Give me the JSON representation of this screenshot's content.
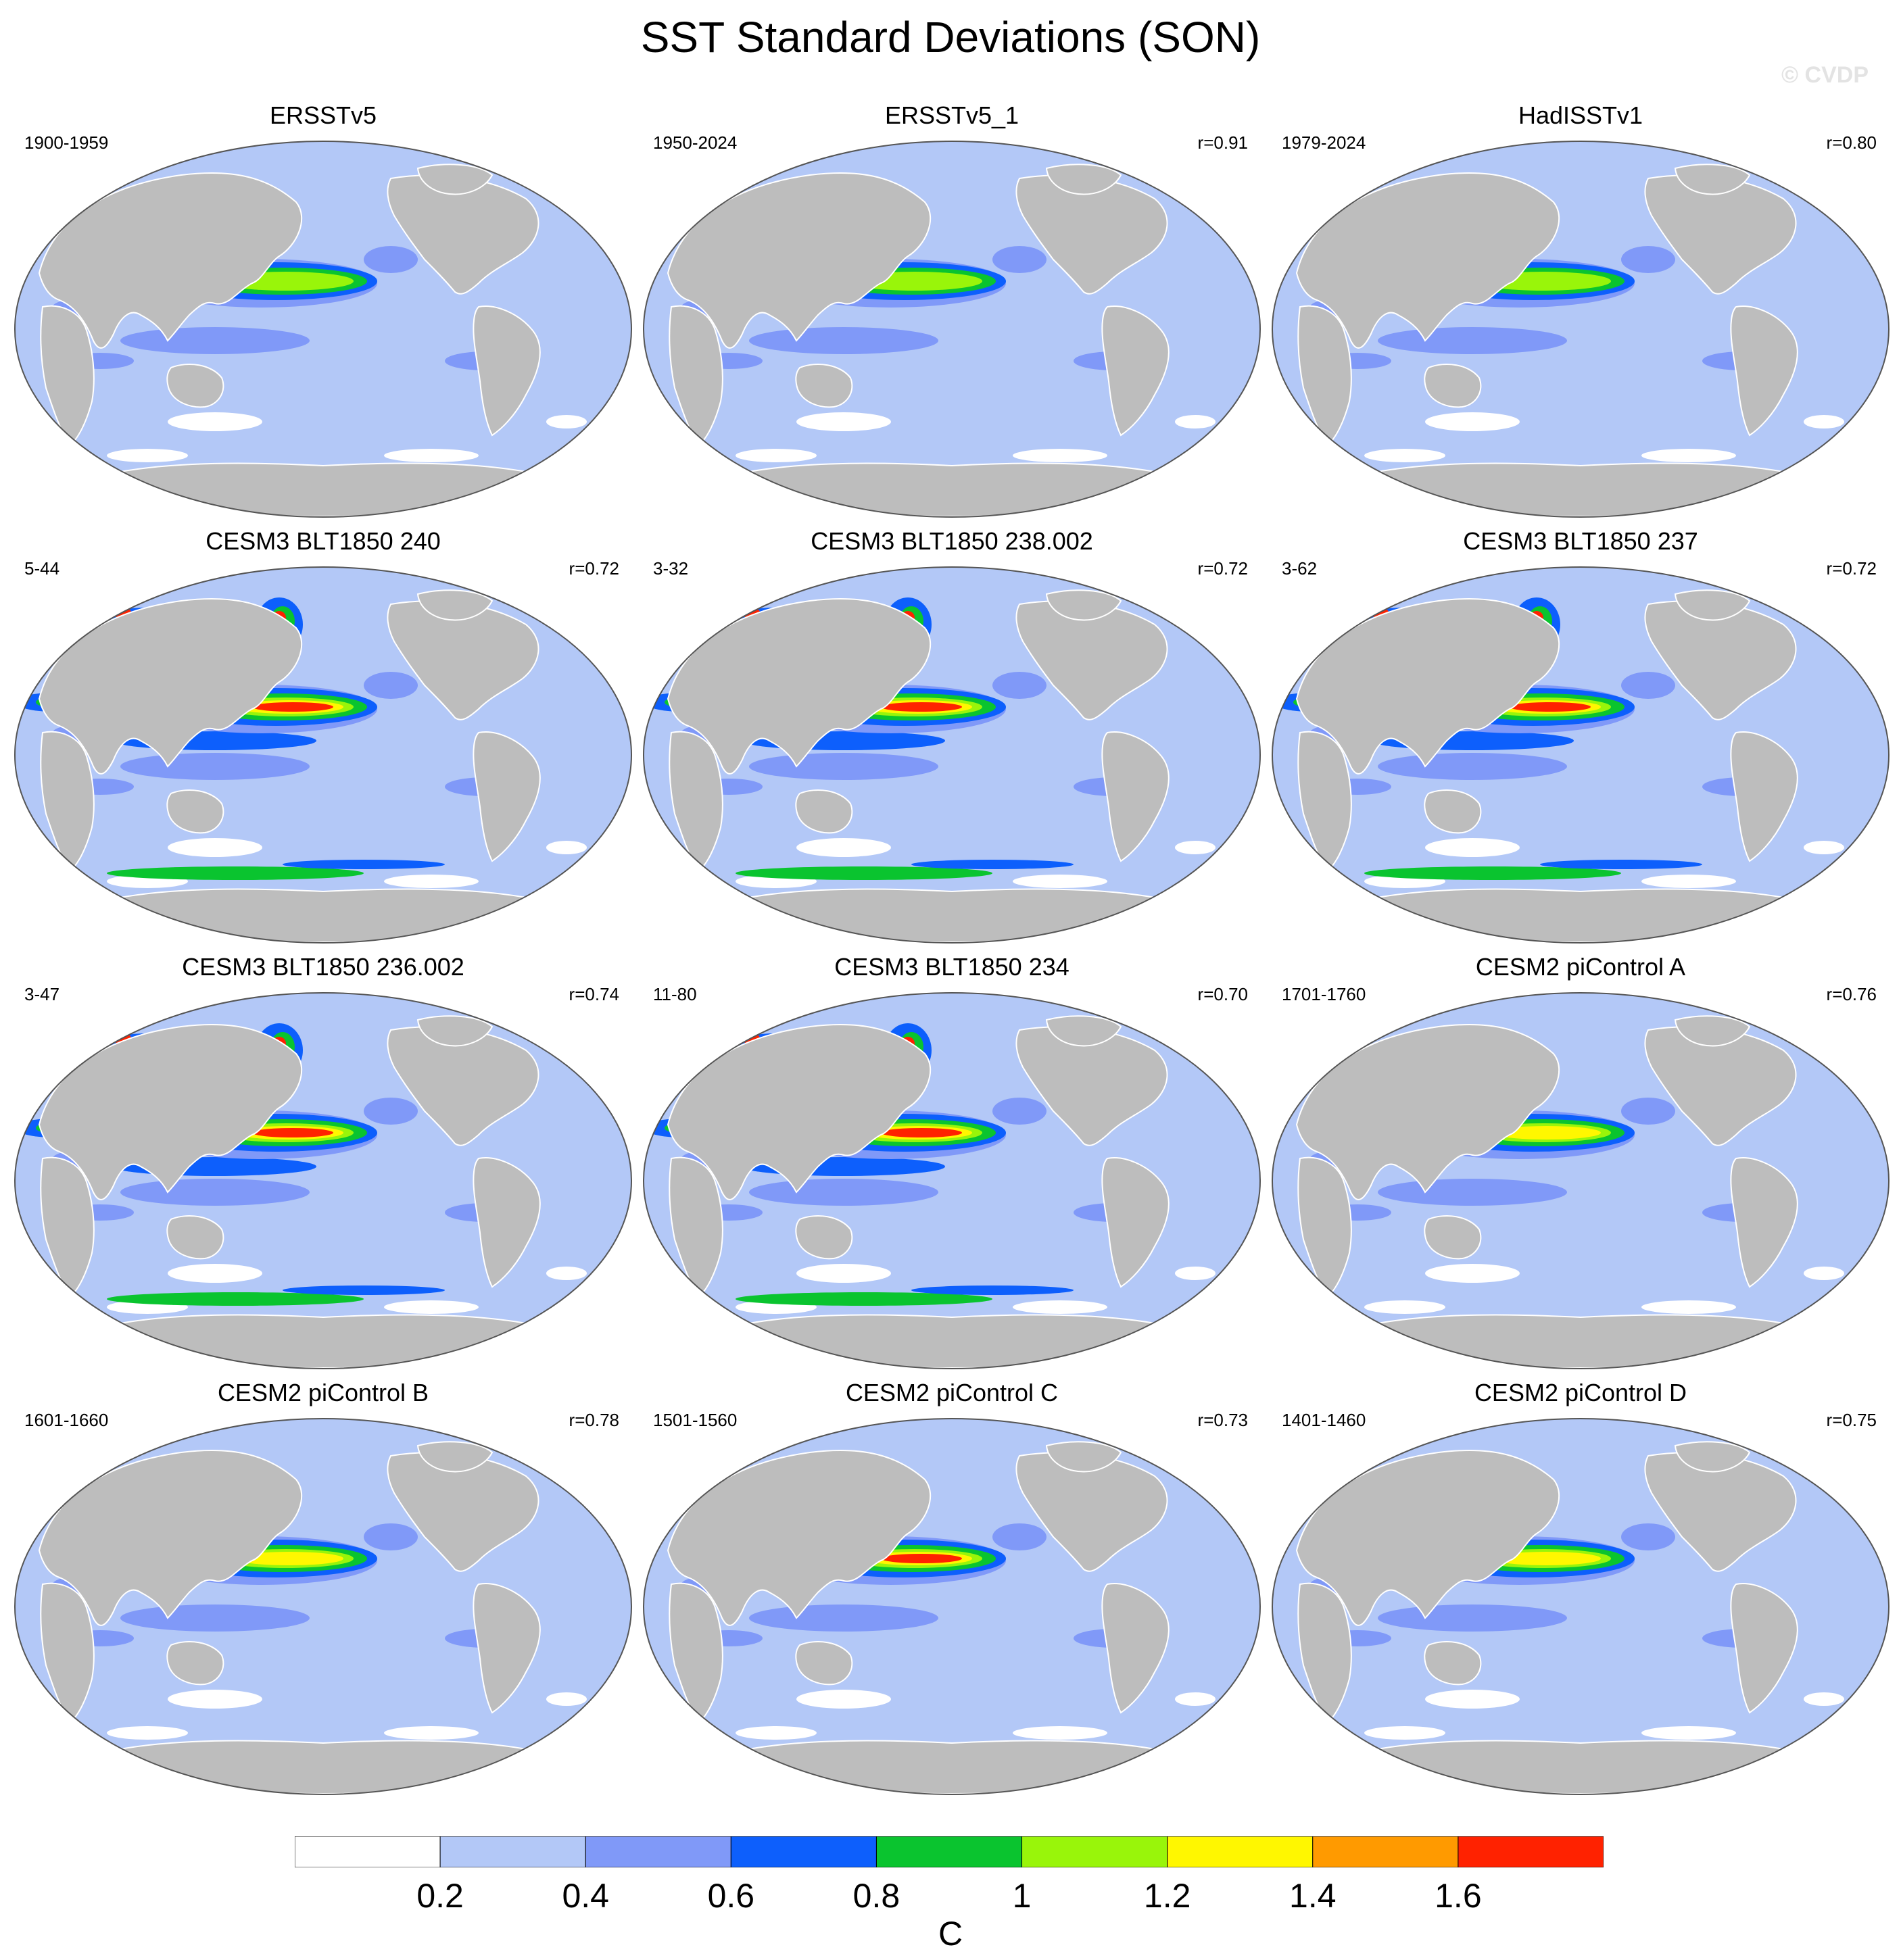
{
  "title": "SST Standard Deviations (SON)",
  "watermark": "© CVDP",
  "colors": {
    "land": "#bdbdbd",
    "ocean_base": "#b3c8f7",
    "levels": [
      "#ffffff",
      "#b3c8f7",
      "#8099f8",
      "#0d5ffc",
      "#0ac42f",
      "#99f50a",
      "#fff700",
      "#ff9a00",
      "#ff2200"
    ]
  },
  "panels": [
    {
      "title": "ERSSTv5",
      "left": "1900-1959",
      "right": ""
    },
    {
      "title": "ERSSTv5_1",
      "left": "1950-2024",
      "right": "r=0.91"
    },
    {
      "title": "HadISSTv1",
      "left": "1979-2024",
      "right": "r=0.80"
    },
    {
      "title": "CESM3 BLT1850 240",
      "left": "5-44",
      "right": "r=0.72"
    },
    {
      "title": "CESM3 BLT1850 238.002",
      "left": "3-32",
      "right": "r=0.72"
    },
    {
      "title": "CESM3 BLT1850 237",
      "left": "3-62",
      "right": "r=0.72"
    },
    {
      "title": "CESM3 BLT1850 236.002",
      "left": "3-47",
      "right": "r=0.74"
    },
    {
      "title": "CESM3 BLT1850 234",
      "left": "11-80",
      "right": "r=0.70"
    },
    {
      "title": "CESM2 piControl A",
      "left": "1701-1760",
      "right": "r=0.76"
    },
    {
      "title": "CESM2 piControl B",
      "left": "1601-1660",
      "right": "r=0.78"
    },
    {
      "title": "CESM2 piControl C",
      "left": "1501-1560",
      "right": "r=0.73"
    },
    {
      "title": "CESM2 piControl D",
      "left": "1401-1460",
      "right": "r=0.75"
    }
  ],
  "colorbar": {
    "ticks": [
      "0.2",
      "0.4",
      "0.6",
      "0.8",
      "1",
      "1.2",
      "1.4",
      "1.6"
    ],
    "unit": "C"
  }
}
